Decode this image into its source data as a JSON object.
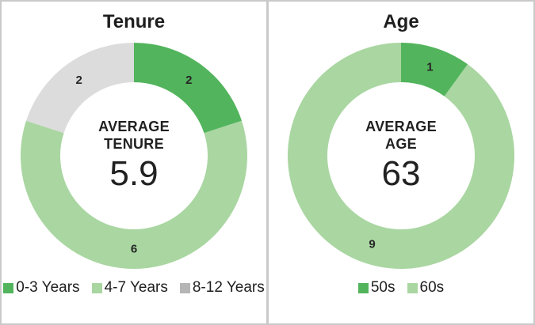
{
  "canvas": {
    "background": "#ffffff",
    "border_color": "#c9c9cb",
    "divider_color": "#c9c9cb"
  },
  "colors": {
    "dark_green": "#52b45c",
    "light_green": "#a9d6a1",
    "gray": "#dcdcdc",
    "legend_gray_swatch": "#b5b5b5",
    "text_dark": "#212121"
  },
  "charts": [
    {
      "title": "Tenure",
      "center": {
        "line1": "AVERAGE",
        "line2": "TENURE",
        "value": "5.9"
      },
      "segments": [
        {
          "label": "0-3 Years",
          "value": 2,
          "color": "#52b45c",
          "data_label": "2"
        },
        {
          "label": "4-7 Years",
          "value": 6,
          "color": "#a9d6a1",
          "data_label": "6"
        },
        {
          "label": "8-12 Years",
          "value": 2,
          "color": "#dcdcdc",
          "data_label": "2"
        }
      ],
      "legend": [
        {
          "label": "0-3 Years",
          "swatch": "#52b45c"
        },
        {
          "label": "4-7 Years",
          "swatch": "#a9d6a1"
        },
        {
          "label": "8-12 Years",
          "swatch": "#b5b5b5"
        }
      ]
    },
    {
      "title": "Age",
      "center": {
        "line1": "AVERAGE",
        "line2": "AGE",
        "value": "63"
      },
      "segments": [
        {
          "label": "50s",
          "value": 1,
          "color": "#52b45c",
          "data_label": "1"
        },
        {
          "label": "60s",
          "value": 9,
          "color": "#a9d6a1",
          "data_label": "9"
        }
      ],
      "legend": [
        {
          "label": "50s",
          "swatch": "#52b45c"
        },
        {
          "label": "60s",
          "swatch": "#a9d6a1"
        }
      ]
    }
  ],
  "chart_data": [
    {
      "type": "pie",
      "subtype": "donut",
      "title": "Tenure",
      "categories": [
        "0-3 Years",
        "4-7 Years",
        "8-12 Years"
      ],
      "values": [
        2,
        6,
        2
      ],
      "colors": [
        "#52b45c",
        "#a9d6a1",
        "#dcdcdc"
      ],
      "data_labels": [
        "2",
        "6",
        "2"
      ],
      "center_text": "AVERAGE TENURE",
      "center_value": 5.9,
      "start_angle_deg": 0,
      "direction": "clockwise",
      "legend_position": "bottom"
    },
    {
      "type": "pie",
      "subtype": "donut",
      "title": "Age",
      "categories": [
        "50s",
        "60s"
      ],
      "values": [
        1,
        9
      ],
      "colors": [
        "#52b45c",
        "#a9d6a1"
      ],
      "data_labels": [
        "1",
        "9"
      ],
      "center_text": "AVERAGE AGE",
      "center_value": 63,
      "start_angle_deg": 0,
      "direction": "clockwise",
      "legend_position": "bottom"
    }
  ]
}
